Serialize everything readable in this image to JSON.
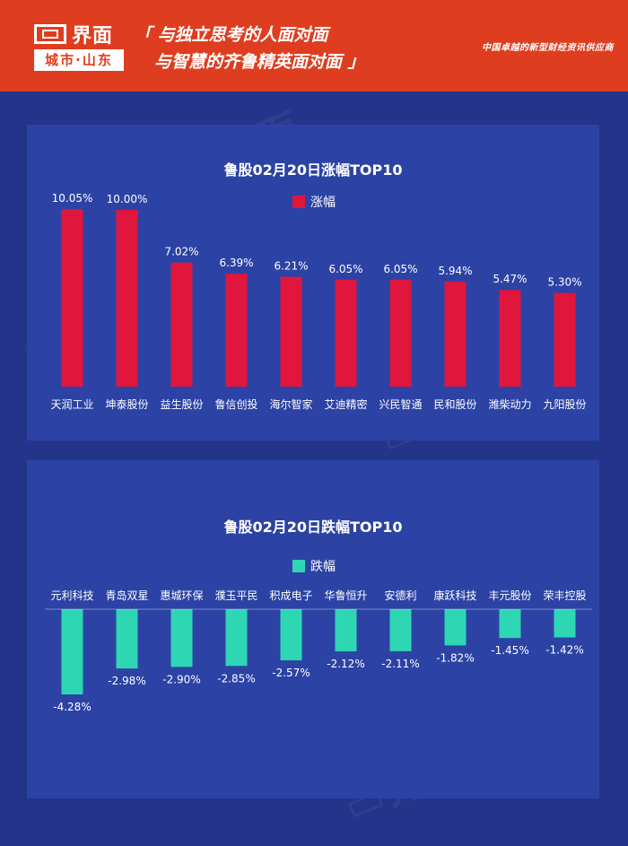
{
  "header": {
    "logo_name": "界面",
    "logo_city": "城市·山东",
    "slogan_line1": "「 与独立思考的人面对面",
    "slogan_line2": "与智慧的齐鲁精英面对面 」",
    "tagline": "中国卓越的新型财经资讯供应商"
  },
  "colors": {
    "header_bg": "#df3d1f",
    "page_bg": "#24348a",
    "panel_bg": "#2c43a5",
    "gain_bar": "#e0163d",
    "loss_bar": "#2ed6b4"
  },
  "chart_data": [
    {
      "type": "bar",
      "title": "鲁股02月20日涨幅TOP10",
      "legend": "top-center",
      "series": [
        {
          "name": "涨幅",
          "color": "#e0163d",
          "values": [
            10.05,
            10.0,
            7.02,
            6.39,
            6.21,
            6.05,
            6.05,
            5.94,
            5.47,
            5.3
          ],
          "labels": [
            "10.05%",
            "10.00%",
            "7.02%",
            "6.39%",
            "6.21%",
            "6.05%",
            "6.05%",
            "5.94%",
            "5.47%",
            "5.30%"
          ]
        }
      ],
      "categories": [
        "天润工业",
        "坤泰股份",
        "益生股份",
        "鲁信创投",
        "海尔智家",
        "艾迪精密",
        "兴民智通",
        "民和股份",
        "潍柴动力",
        "九阳股份"
      ],
      "ylim": [
        0,
        10.05
      ],
      "grid": false
    },
    {
      "type": "bar",
      "title": "鲁股02月20日跌幅TOP10",
      "legend": "top-center",
      "series": [
        {
          "name": "跌幅",
          "color": "#2ed6b4",
          "values": [
            -4.28,
            -2.98,
            -2.9,
            -2.85,
            -2.57,
            -2.12,
            -2.11,
            -1.82,
            -1.45,
            -1.42
          ],
          "labels": [
            "-4.28%",
            "-2.98%",
            "-2.90%",
            "-2.85%",
            "-2.57%",
            "-2.12%",
            "-2.11%",
            "-1.82%",
            "-1.45%",
            "-1.42%"
          ]
        }
      ],
      "categories": [
        "元利科技",
        "青岛双星",
        "惠城环保",
        "濮玉平民",
        "积成电子",
        "华鲁恒升",
        "安德利",
        "康跃科技",
        "丰元股份",
        "荣丰控股"
      ],
      "ylim": [
        -4.28,
        0
      ],
      "grid": false
    }
  ]
}
